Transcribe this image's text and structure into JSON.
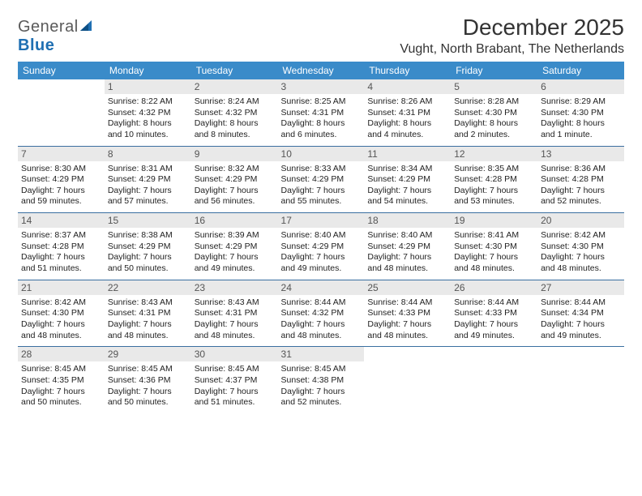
{
  "brand": {
    "name_a": "General",
    "name_b": "Blue"
  },
  "title": "December 2025",
  "location": "Vught, North Brabant, The Netherlands",
  "colors": {
    "header_bg": "#3a8bc9",
    "header_fg": "#ffffff",
    "daynum_bg": "#e9e9e9",
    "rule": "#3a6fa0",
    "text": "#333333",
    "brand_gray": "#5a5a5a",
    "brand_blue": "#1f6fb2"
  },
  "weekdays": [
    "Sunday",
    "Monday",
    "Tuesday",
    "Wednesday",
    "Thursday",
    "Friday",
    "Saturday"
  ],
  "weeks": [
    [
      null,
      {
        "n": "1",
        "sunrise": "8:22 AM",
        "sunset": "4:32 PM",
        "daylight": "8 hours and 10 minutes."
      },
      {
        "n": "2",
        "sunrise": "8:24 AM",
        "sunset": "4:32 PM",
        "daylight": "8 hours and 8 minutes."
      },
      {
        "n": "3",
        "sunrise": "8:25 AM",
        "sunset": "4:31 PM",
        "daylight": "8 hours and 6 minutes."
      },
      {
        "n": "4",
        "sunrise": "8:26 AM",
        "sunset": "4:31 PM",
        "daylight": "8 hours and 4 minutes."
      },
      {
        "n": "5",
        "sunrise": "8:28 AM",
        "sunset": "4:30 PM",
        "daylight": "8 hours and 2 minutes."
      },
      {
        "n": "6",
        "sunrise": "8:29 AM",
        "sunset": "4:30 PM",
        "daylight": "8 hours and 1 minute."
      }
    ],
    [
      {
        "n": "7",
        "sunrise": "8:30 AM",
        "sunset": "4:29 PM",
        "daylight": "7 hours and 59 minutes."
      },
      {
        "n": "8",
        "sunrise": "8:31 AM",
        "sunset": "4:29 PM",
        "daylight": "7 hours and 57 minutes."
      },
      {
        "n": "9",
        "sunrise": "8:32 AM",
        "sunset": "4:29 PM",
        "daylight": "7 hours and 56 minutes."
      },
      {
        "n": "10",
        "sunrise": "8:33 AM",
        "sunset": "4:29 PM",
        "daylight": "7 hours and 55 minutes."
      },
      {
        "n": "11",
        "sunrise": "8:34 AM",
        "sunset": "4:29 PM",
        "daylight": "7 hours and 54 minutes."
      },
      {
        "n": "12",
        "sunrise": "8:35 AM",
        "sunset": "4:28 PM",
        "daylight": "7 hours and 53 minutes."
      },
      {
        "n": "13",
        "sunrise": "8:36 AM",
        "sunset": "4:28 PM",
        "daylight": "7 hours and 52 minutes."
      }
    ],
    [
      {
        "n": "14",
        "sunrise": "8:37 AM",
        "sunset": "4:28 PM",
        "daylight": "7 hours and 51 minutes."
      },
      {
        "n": "15",
        "sunrise": "8:38 AM",
        "sunset": "4:29 PM",
        "daylight": "7 hours and 50 minutes."
      },
      {
        "n": "16",
        "sunrise": "8:39 AM",
        "sunset": "4:29 PM",
        "daylight": "7 hours and 49 minutes."
      },
      {
        "n": "17",
        "sunrise": "8:40 AM",
        "sunset": "4:29 PM",
        "daylight": "7 hours and 49 minutes."
      },
      {
        "n": "18",
        "sunrise": "8:40 AM",
        "sunset": "4:29 PM",
        "daylight": "7 hours and 48 minutes."
      },
      {
        "n": "19",
        "sunrise": "8:41 AM",
        "sunset": "4:30 PM",
        "daylight": "7 hours and 48 minutes."
      },
      {
        "n": "20",
        "sunrise": "8:42 AM",
        "sunset": "4:30 PM",
        "daylight": "7 hours and 48 minutes."
      }
    ],
    [
      {
        "n": "21",
        "sunrise": "8:42 AM",
        "sunset": "4:30 PM",
        "daylight": "7 hours and 48 minutes."
      },
      {
        "n": "22",
        "sunrise": "8:43 AM",
        "sunset": "4:31 PM",
        "daylight": "7 hours and 48 minutes."
      },
      {
        "n": "23",
        "sunrise": "8:43 AM",
        "sunset": "4:31 PM",
        "daylight": "7 hours and 48 minutes."
      },
      {
        "n": "24",
        "sunrise": "8:44 AM",
        "sunset": "4:32 PM",
        "daylight": "7 hours and 48 minutes."
      },
      {
        "n": "25",
        "sunrise": "8:44 AM",
        "sunset": "4:33 PM",
        "daylight": "7 hours and 48 minutes."
      },
      {
        "n": "26",
        "sunrise": "8:44 AM",
        "sunset": "4:33 PM",
        "daylight": "7 hours and 49 minutes."
      },
      {
        "n": "27",
        "sunrise": "8:44 AM",
        "sunset": "4:34 PM",
        "daylight": "7 hours and 49 minutes."
      }
    ],
    [
      {
        "n": "28",
        "sunrise": "8:45 AM",
        "sunset": "4:35 PM",
        "daylight": "7 hours and 50 minutes."
      },
      {
        "n": "29",
        "sunrise": "8:45 AM",
        "sunset": "4:36 PM",
        "daylight": "7 hours and 50 minutes."
      },
      {
        "n": "30",
        "sunrise": "8:45 AM",
        "sunset": "4:37 PM",
        "daylight": "7 hours and 51 minutes."
      },
      {
        "n": "31",
        "sunrise": "8:45 AM",
        "sunset": "4:38 PM",
        "daylight": "7 hours and 52 minutes."
      },
      null,
      null,
      null
    ]
  ],
  "labels": {
    "sunrise": "Sunrise:",
    "sunset": "Sunset:",
    "daylight": "Daylight:"
  }
}
